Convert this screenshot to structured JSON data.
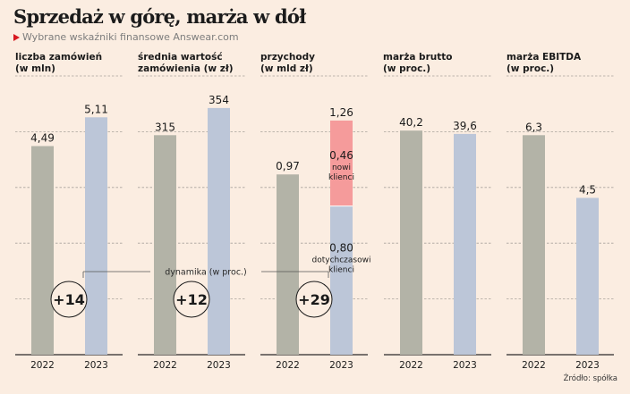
{
  "title": "Sprzedaż w górę, marża w dół",
  "subtitle": "Wybrane wskaźniki finansowe Answear.com",
  "source": "Źródło: spółka",
  "colors": {
    "y2022": "#b3b3a7",
    "y2023": "#bcc6d8",
    "new_clients": "#f59b9b",
    "background": "#fbede1",
    "accent": "#d71920"
  },
  "dynamics_label": "dynamika (w proc.)",
  "chart_data": [
    {
      "type": "bar",
      "title": "liczba zamówień",
      "unit": "(w mln)",
      "categories": [
        "2022",
        "2023"
      ],
      "values": [
        4.49,
        5.11
      ],
      "labels": [
        "4,49",
        "5,11"
      ],
      "ylim": [
        0,
        6
      ],
      "grid": true,
      "change": "+14"
    },
    {
      "type": "bar",
      "title": "średnia wartość",
      "title2": "zamówienia (w zł)",
      "categories": [
        "2022",
        "2023"
      ],
      "values": [
        315,
        354
      ],
      "labels": [
        "315",
        "354"
      ],
      "ylim": [
        0,
        400
      ],
      "grid": true,
      "change": "+12"
    },
    {
      "type": "bar",
      "title": "przychody",
      "unit": "(w mld zł)",
      "categories": [
        "2022",
        "2023"
      ],
      "values": [
        0.97,
        1.26
      ],
      "labels": [
        "0,97",
        "1,26"
      ],
      "ylim": [
        0,
        1.5
      ],
      "grid": true,
      "change": "+29",
      "stacked_2023": [
        {
          "name": "dotychczasowi klienci",
          "value": 0.8,
          "label": "0,80",
          "line1": "dotychczasowi",
          "line2": "klienci"
        },
        {
          "name": "nowi klienci",
          "value": 0.46,
          "label": "0,46",
          "line1": "nowi",
          "line2": "klienci"
        }
      ]
    },
    {
      "type": "bar",
      "title": "marża brutto",
      "unit": "(w proc.)",
      "categories": [
        "2022",
        "2023"
      ],
      "values": [
        40.2,
        39.6
      ],
      "labels": [
        "40,2",
        "39,6"
      ],
      "ylim": [
        0,
        50
      ],
      "grid": true
    },
    {
      "type": "bar",
      "title": "marża EBITDA",
      "unit": "(w proc.)",
      "categories": [
        "2022",
        "2023"
      ],
      "values": [
        6.3,
        4.5
      ],
      "labels": [
        "6,3",
        "4,5"
      ],
      "ylim": [
        0,
        8
      ],
      "grid": true
    }
  ]
}
